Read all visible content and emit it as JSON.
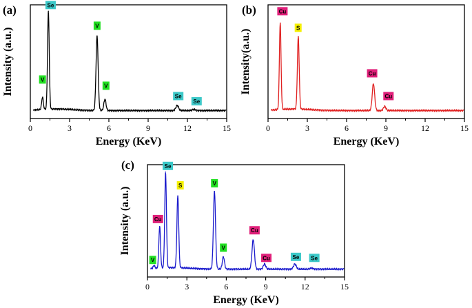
{
  "chart_data": [
    {
      "type": "line",
      "panel": "(a)",
      "xlabel": "Energy (KeV)",
      "ylabel": "Intensity (a.u.)",
      "xlim": [
        0,
        15
      ],
      "ylim": [
        0,
        1
      ],
      "xticks": [
        0,
        3,
        6,
        9,
        12,
        15
      ],
      "line_color": "#000000",
      "peaks": [
        {
          "x": 0.93,
          "h": 0.12
        },
        {
          "x": 1.38,
          "h": 0.94
        },
        {
          "x": 5.1,
          "h": 0.72
        },
        {
          "x": 5.7,
          "h": 0.11
        },
        {
          "x": 11.22,
          "h": 0.05
        },
        {
          "x": 12.5,
          "h": 0.012
        }
      ],
      "annotations": [
        {
          "text": "V",
          "x": 0.93,
          "y": 0.3,
          "color": "#22e022"
        },
        {
          "text": "Se",
          "x": 1.55,
          "y": 1.02,
          "color": "#3cc8c8"
        },
        {
          "text": "V",
          "x": 5.1,
          "y": 0.82,
          "color": "#22e022"
        },
        {
          "text": "V",
          "x": 5.78,
          "y": 0.24,
          "color": "#22e022"
        },
        {
          "text": "Se",
          "x": 11.3,
          "y": 0.14,
          "color": "#3cc8c8"
        },
        {
          "text": "Se",
          "x": 12.7,
          "y": 0.09,
          "color": "#3cc8c8"
        }
      ]
    },
    {
      "type": "line",
      "panel": "(b)",
      "xlabel": "Energy (KeV)",
      "ylabel": "Intensity(a.u.)",
      "xlim": [
        0,
        15
      ],
      "ylim": [
        0,
        1
      ],
      "xticks": [
        0,
        3,
        6,
        9,
        12,
        15
      ],
      "line_color": "#e02020",
      "peaks": [
        {
          "x": 0.93,
          "h": 0.84
        },
        {
          "x": 2.31,
          "h": 0.7
        },
        {
          "x": 8.05,
          "h": 0.26
        },
        {
          "x": 8.91,
          "h": 0.04
        }
      ],
      "annotations": [
        {
          "text": "Cu",
          "x": 1.1,
          "y": 0.96,
          "color": "#e0207a"
        },
        {
          "text": "S",
          "x": 2.3,
          "y": 0.8,
          "color": "#f5f000"
        },
        {
          "text": "Cu",
          "x": 7.95,
          "y": 0.36,
          "color": "#e0207a"
        },
        {
          "text": "Cu",
          "x": 9.2,
          "y": 0.14,
          "color": "#e0207a"
        }
      ]
    },
    {
      "type": "line",
      "panel": "(c)",
      "xlabel": "Energy (KeV)",
      "ylabel": "Intensity (a.u.)",
      "xlim": [
        0,
        15
      ],
      "ylim": [
        0,
        1
      ],
      "xticks": [
        0,
        3,
        6,
        9,
        12,
        15
      ],
      "line_color": "#1a1acc",
      "peaks": [
        {
          "x": 0.5,
          "h": 0.03
        },
        {
          "x": 0.93,
          "h": 0.41
        },
        {
          "x": 1.38,
          "h": 0.93
        },
        {
          "x": 2.31,
          "h": 0.7
        },
        {
          "x": 5.1,
          "h": 0.76
        },
        {
          "x": 5.78,
          "h": 0.12
        },
        {
          "x": 8.05,
          "h": 0.29
        },
        {
          "x": 8.91,
          "h": 0.05
        },
        {
          "x": 11.22,
          "h": 0.05
        },
        {
          "x": 12.5,
          "h": 0.01
        }
      ],
      "annotations": [
        {
          "text": "V",
          "x": 0.4,
          "y": 0.09,
          "color": "#22e022"
        },
        {
          "text": "Cu",
          "x": 0.8,
          "y": 0.49,
          "color": "#e0207a"
        },
        {
          "text": "Se",
          "x": 1.55,
          "y": 1.01,
          "color": "#3cc8c8"
        },
        {
          "text": "S",
          "x": 2.5,
          "y": 0.82,
          "color": "#f5f000"
        },
        {
          "text": "V",
          "x": 5.1,
          "y": 0.84,
          "color": "#22e022"
        },
        {
          "text": "V",
          "x": 5.78,
          "y": 0.21,
          "color": "#22e022"
        },
        {
          "text": "Cu",
          "x": 8.15,
          "y": 0.38,
          "color": "#e0207a"
        },
        {
          "text": "Cu",
          "x": 9.05,
          "y": 0.11,
          "color": "#e0207a"
        },
        {
          "text": "Se",
          "x": 11.3,
          "y": 0.12,
          "color": "#3cc8c8"
        },
        {
          "text": "Se",
          "x": 12.7,
          "y": 0.11,
          "color": "#3cc8c8"
        }
      ]
    }
  ]
}
